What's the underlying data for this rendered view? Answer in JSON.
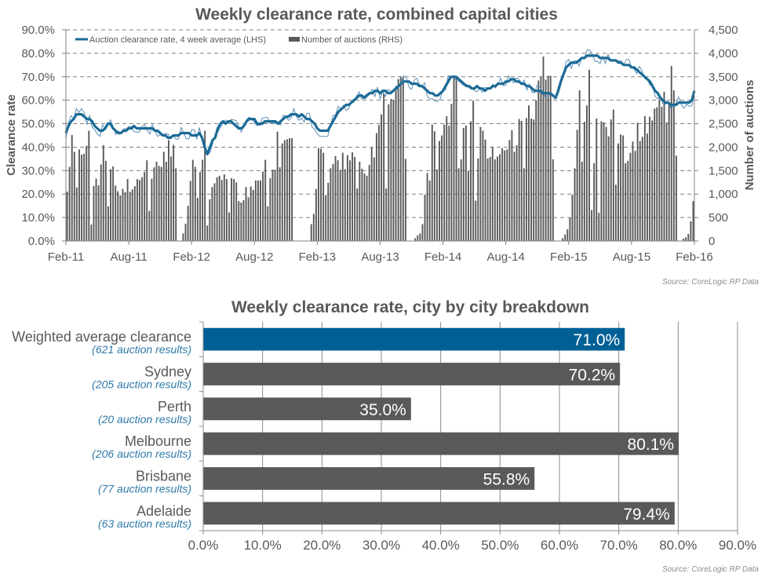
{
  "chart_data": [
    {
      "type": "bar+line",
      "title": "Weekly clearance rate, combined capital cities",
      "ylabel_left": "Clearance rate",
      "ylabel_right": "Number of auctions",
      "ylim_left": [
        0,
        90
      ],
      "ylim_right": [
        0,
        4500
      ],
      "y_ticks_left": [
        "0.0%",
        "10.0%",
        "20.0%",
        "30.0%",
        "40.0%",
        "50.0%",
        "60.0%",
        "70.0%",
        "80.0%",
        "90.0%"
      ],
      "y_ticks_right": [
        "0",
        "500",
        "1,000",
        "1,500",
        "2,000",
        "2,500",
        "3,000",
        "3,500",
        "4,000",
        "4,500"
      ],
      "x_ticks": [
        "Feb-11",
        "Aug-11",
        "Feb-12",
        "Aug-12",
        "Feb-13",
        "Aug-13",
        "Feb-14",
        "Aug-14",
        "Feb-15",
        "Aug-15",
        "Feb-16"
      ],
      "grid": "horizontal dashed",
      "legend_position": "top-left",
      "legend": [
        "Auction clearance rate, 4 week average (LHS)",
        "Number of auctions (RHS)"
      ],
      "source": "Source: CoreLogic  RP Data",
      "colors": {
        "line": "#1b6a96",
        "bars": "#595959"
      },
      "series": [
        {
          "name": "Number of auctions (RHS)",
          "kind": "bar",
          "axis": "right",
          "values": [
            1050,
            1580,
            2260,
            1900,
            1140,
            1950,
            1840,
            1860,
            2030,
            2350,
            350,
            1170,
            1330,
            1190,
            1630,
            2040,
            1710,
            740,
            1530,
            1590,
            1180,
            1060,
            970,
            1110,
            1040,
            1320,
            1050,
            1100,
            1170,
            1320,
            1300,
            1360,
            1470,
            1720,
            640,
            1330,
            1570,
            1690,
            1600,
            1580,
            1900,
            1690,
            2150,
            1800,
            2050,
            1550,
            0,
            0,
            160,
            370,
            750,
            1280,
            1730,
            1580,
            920,
            1470,
            1730,
            2350,
            330,
            890,
            1150,
            1230,
            1360,
            1390,
            1300,
            1420,
            1320,
            610,
            1340,
            1320,
            1250,
            850,
            820,
            870,
            1150,
            930,
            1160,
            1090,
            1290,
            1290,
            1290,
            1480,
            1730,
            740,
            1340,
            1520,
            1520,
            2330,
            1570,
            2080,
            2150,
            2170,
            2190,
            2190,
            0,
            0,
            0,
            0,
            0,
            0,
            0,
            360,
            580,
            1110,
            1980,
            1970,
            1880,
            980,
            1240,
            1550,
            1640,
            1810,
            1720,
            1520,
            1880,
            1530,
            1830,
            1720,
            1890,
            1790,
            1120,
            1690,
            1540,
            1440,
            1390,
            1620,
            1990,
            1780,
            2300,
            2470,
            2700,
            3150,
            1120,
            2910,
            3030,
            3000,
            3300,
            3450,
            3500,
            3500,
            1750,
            0,
            0,
            0,
            60,
            120,
            160,
            360,
            990,
            1450,
            1290,
            2480,
            2340,
            1530,
            2130,
            2250,
            2480,
            2660,
            2460,
            2920,
            3470,
            3510,
            1550,
            1740,
            2410,
            2460,
            1490,
            2550,
            2990,
            860,
            1760,
            2430,
            2350,
            2160,
            1760,
            1790,
            2010,
            1740,
            1800,
            1850,
            1980,
            1930,
            1950,
            2150,
            2360,
            1900,
            2040,
            2600,
            2560,
            1550,
            2620,
            2890,
            2610,
            2590,
            3000,
            3420,
            3500,
            3930,
            3440,
            3520,
            3520,
            1740,
            0,
            0,
            0,
            60,
            140,
            250,
            500,
            990,
            1550,
            2370,
            3210,
            1690,
            2540,
            2890,
            3650,
            660,
            1660,
            2610,
            600,
            2550,
            2530,
            2430,
            2230,
            2590,
            2800,
            1200,
            2080,
            2270,
            2250,
            1660,
            1710,
            1880,
            2120,
            1920,
            2520,
            2130,
            2220,
            2660,
            2290,
            2650,
            2570,
            2820,
            2850,
            3010,
            2860,
            3180,
            2530,
            2950,
            3730,
            3210,
            1820,
            0,
            0,
            50,
            80,
            150,
            420,
            850
          ]
        },
        {
          "name": "Auction clearance rate, 4 week average (LHS)",
          "kind": "line",
          "axis": "left",
          "values": [
            46,
            49,
            51,
            52,
            54,
            54,
            54,
            53,
            52,
            52,
            51,
            49,
            48,
            47,
            47,
            48,
            50,
            50,
            48,
            47,
            46,
            46,
            47,
            47,
            48,
            48,
            49,
            48,
            48,
            48,
            48,
            48,
            48,
            48,
            47,
            47,
            46,
            45,
            45,
            44,
            44,
            45,
            45,
            45,
            46,
            46,
            46,
            46,
            45,
            45,
            45,
            46,
            44,
            40,
            37,
            40,
            43,
            44,
            48,
            50,
            51,
            50,
            51,
            51,
            50,
            49,
            48,
            48,
            49,
            51,
            52,
            52,
            52,
            50,
            50,
            50,
            51,
            51,
            51,
            51,
            51,
            50,
            51,
            52,
            53,
            53,
            54,
            54,
            54,
            53,
            54,
            53,
            52,
            52,
            51,
            50,
            48,
            47,
            47,
            47,
            47,
            49,
            51,
            53,
            55,
            56,
            57,
            58,
            58,
            59,
            60,
            61,
            62,
            62,
            61,
            62,
            63,
            63,
            64,
            64,
            63,
            64,
            64,
            63,
            63,
            64,
            65,
            66,
            67,
            68,
            68,
            68,
            67,
            67,
            67,
            66,
            66,
            65,
            64,
            63,
            63,
            62,
            62,
            63,
            64,
            66,
            68,
            70,
            70,
            70,
            69,
            68,
            67,
            66,
            66,
            65,
            65,
            66,
            65,
            65,
            64,
            65,
            65,
            66,
            66,
            67,
            67,
            67,
            68,
            68,
            69,
            69,
            68,
            68,
            67,
            67,
            66,
            66,
            65,
            64,
            64,
            64,
            63,
            63,
            63,
            63,
            62,
            61,
            64,
            68,
            71,
            74,
            75,
            76,
            76,
            76,
            77,
            78,
            78,
            79,
            79,
            79,
            79,
            79,
            78,
            78,
            78,
            78,
            77,
            77,
            77,
            76,
            76,
            75,
            75,
            75,
            74,
            74,
            73,
            72,
            71,
            70,
            69,
            68,
            66,
            64,
            63,
            61,
            60,
            59,
            59,
            58,
            58,
            58,
            59,
            59,
            59,
            59,
            59,
            60,
            64
          ]
        }
      ]
    },
    {
      "type": "bar",
      "orientation": "horizontal",
      "title": "Weekly clearance rate, city by city breakdown",
      "xlim": [
        0,
        90
      ],
      "x_ticks": [
        "0.0%",
        "10.0%",
        "20.0%",
        "30.0%",
        "40.0%",
        "50.0%",
        "60.0%",
        "70.0%",
        "80.0%",
        "90.0%"
      ],
      "grid": "vertical solid",
      "source": "Source: CoreLogic  RP Data",
      "categories": [
        {
          "name": "Weighted average clearance",
          "sub": "(621 auction results)",
          "value": 71.0,
          "label": "71.0%",
          "color": "#006096"
        },
        {
          "name": "Sydney",
          "sub": "(205 auction results)",
          "value": 70.2,
          "label": "70.2%",
          "color": "#595959"
        },
        {
          "name": "Perth",
          "sub": "(20 auction results)",
          "value": 35.0,
          "label": "35.0%",
          "color": "#595959"
        },
        {
          "name": "Melbourne",
          "sub": "(206 auction results)",
          "value": 80.1,
          "label": "80.1%",
          "color": "#595959"
        },
        {
          "name": "Brisbane",
          "sub": "(77 auction results)",
          "value": 55.8,
          "label": "55.8%",
          "color": "#595959"
        },
        {
          "name": "Adelaide",
          "sub": "(63 auction results)",
          "value": 79.4,
          "label": "79.4%",
          "color": "#595959"
        }
      ]
    }
  ]
}
